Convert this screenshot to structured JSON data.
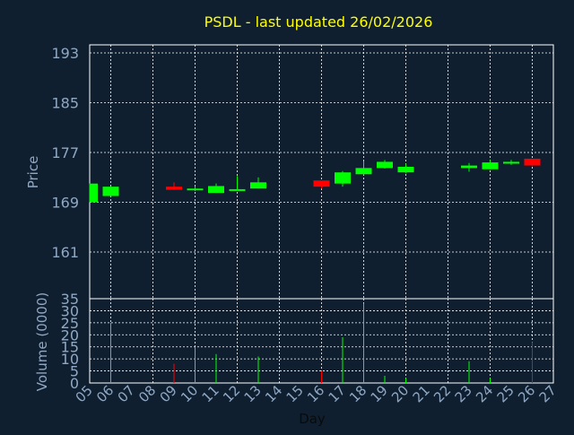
{
  "chart_data": {
    "type": "candlestick",
    "title": "PSDL - last updated 26/02/2026",
    "xlabel": "Day",
    "colors": {
      "background": "#0f1f30",
      "title": "#ffff00",
      "axis_text": "#8fa8c4",
      "grid": "#ffffff",
      "axis": "#ffffff",
      "up": "#00ff00",
      "down": "#ff0000"
    },
    "price_panel": {
      "ylabel": "Price",
      "ylim": [
        153.5,
        194.3
      ],
      "ticks": [
        161,
        169,
        177,
        185,
        193
      ],
      "tick_labels": [
        "161",
        "169",
        "177",
        "185",
        "193"
      ],
      "grid": true
    },
    "volume_panel": {
      "ylabel": "Volume (0000)",
      "ylim": [
        0,
        35
      ],
      "ticks": [
        0,
        5,
        10,
        15,
        20,
        25,
        30,
        35
      ],
      "tick_labels": [
        "0",
        "5",
        "10",
        "15",
        "20",
        "25",
        "30",
        "35"
      ],
      "grid": true
    },
    "x": {
      "days": [
        5,
        6,
        7,
        8,
        9,
        10,
        11,
        12,
        13,
        14,
        15,
        16,
        17,
        18,
        19,
        20,
        21,
        22,
        23,
        24,
        25,
        26,
        27
      ],
      "tick_labels": [
        "05",
        "06",
        "07",
        "08",
        "09",
        "10",
        "11",
        "12",
        "13",
        "14",
        "15",
        "16",
        "17",
        "18",
        "19",
        "20",
        "21",
        "22",
        "23",
        "24",
        "25",
        "26",
        "27"
      ]
    },
    "candles": [
      {
        "day": 5,
        "open": 169.0,
        "high": 172.0,
        "low": 169.0,
        "close": 172.0,
        "volume": 0
      },
      {
        "day": 6,
        "open": 170.0,
        "high": 171.5,
        "low": 170.0,
        "close": 171.5,
        "volume": 25
      },
      {
        "day": 9,
        "open": 171.5,
        "high": 172.2,
        "low": 171.0,
        "close": 171.0,
        "volume": 8
      },
      {
        "day": 10,
        "open": 171.0,
        "high": 171.5,
        "low": 170.8,
        "close": 171.2,
        "volume": 15
      },
      {
        "day": 11,
        "open": 170.5,
        "high": 172.0,
        "low": 170.5,
        "close": 171.6,
        "volume": 12
      },
      {
        "day": 12,
        "open": 170.9,
        "high": 173.2,
        "low": 170.9,
        "close": 171.1,
        "volume": 0
      },
      {
        "day": 13,
        "open": 171.2,
        "high": 173.0,
        "low": 171.2,
        "close": 172.2,
        "volume": 11
      },
      {
        "day": 16,
        "open": 172.5,
        "high": 172.5,
        "low": 171.2,
        "close": 171.5,
        "volume": 5
      },
      {
        "day": 17,
        "open": 172.0,
        "high": 174.0,
        "low": 171.5,
        "close": 173.8,
        "volume": 19
      },
      {
        "day": 18,
        "open": 173.5,
        "high": 175.6,
        "low": 173.4,
        "close": 174.5,
        "volume": 33
      },
      {
        "day": 19,
        "open": 174.5,
        "high": 175.8,
        "low": 174.4,
        "close": 175.5,
        "volume": 3
      },
      {
        "day": 20,
        "open": 173.8,
        "high": 175.2,
        "low": 173.7,
        "close": 174.7,
        "volume": 2
      },
      {
        "day": 23,
        "open": 174.5,
        "high": 175.3,
        "low": 173.9,
        "close": 174.9,
        "volume": 9
      },
      {
        "day": 24,
        "open": 174.3,
        "high": 175.8,
        "low": 174.3,
        "close": 175.4,
        "volume": 2
      },
      {
        "day": 25,
        "open": 175.2,
        "high": 175.8,
        "low": 175.0,
        "close": 175.5,
        "volume": 0
      },
      {
        "day": 26,
        "open": 176.0,
        "high": 176.0,
        "low": 174.8,
        "close": 174.9,
        "volume": 17
      }
    ]
  }
}
